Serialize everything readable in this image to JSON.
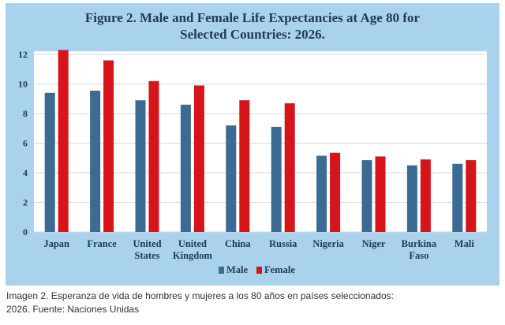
{
  "chart_data": {
    "type": "bar",
    "title_lines": [
      "Figure 2. Male and Female Life Expectancies at Age 80 for",
      "Selected Countries: 2026."
    ],
    "categories": [
      [
        "Japan"
      ],
      [
        "France"
      ],
      [
        "United",
        "States"
      ],
      [
        "United",
        "Kingdom"
      ],
      [
        "China"
      ],
      [
        "Russia"
      ],
      [
        "Nigeria"
      ],
      [
        "Niger"
      ],
      [
        "Burkina",
        "Faso"
      ],
      [
        "Mali"
      ]
    ],
    "series": [
      {
        "name": "Male",
        "color": "#3b6a92",
        "values": [
          9.4,
          9.55,
          8.9,
          8.6,
          7.2,
          7.1,
          5.15,
          4.85,
          4.5,
          4.6
        ]
      },
      {
        "name": "Female",
        "color": "#d6141a",
        "values": [
          12.3,
          11.6,
          10.2,
          9.9,
          8.9,
          8.7,
          5.35,
          5.1,
          4.9,
          4.85
        ]
      }
    ],
    "ylim": [
      0,
      12
    ],
    "yticks": [
      0,
      2,
      4,
      6,
      8,
      10,
      12
    ],
    "grid": true,
    "legend": "bottom-center"
  },
  "caption": {
    "line1": "Imagen 2. Esperanza de vida de hombres y mujeres a los 80 años en países seleccionados:",
    "line2": "2026. Fuente: Naciones Unidas"
  }
}
